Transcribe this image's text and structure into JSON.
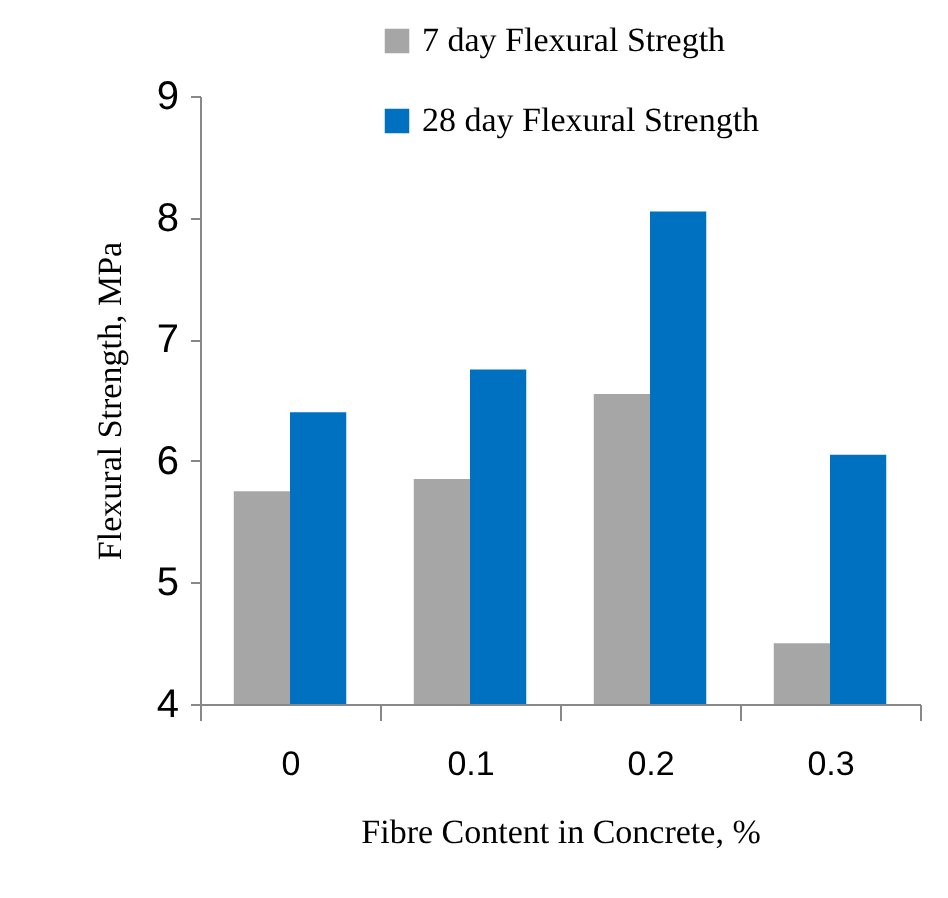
{
  "chart_data": {
    "type": "bar",
    "xlabel": "Fibre Content in Concrete, %",
    "ylabel": "Flexural Strength, MPa",
    "categories": [
      "0",
      "0.1",
      "0.2",
      "0.3"
    ],
    "series": [
      {
        "name": "7 day Flexural Stregth",
        "color": "#a6a6a6",
        "values": [
          5.75,
          5.85,
          6.55,
          4.5
        ]
      },
      {
        "name": "28 day Flexural Strength",
        "color": "#0070c0",
        "values": [
          6.4,
          6.75,
          8.05,
          6.05
        ]
      }
    ],
    "ylim": [
      4,
      9
    ],
    "yticks": [
      4,
      5,
      6,
      7,
      8,
      9
    ],
    "grid": false,
    "legend": "top right"
  }
}
